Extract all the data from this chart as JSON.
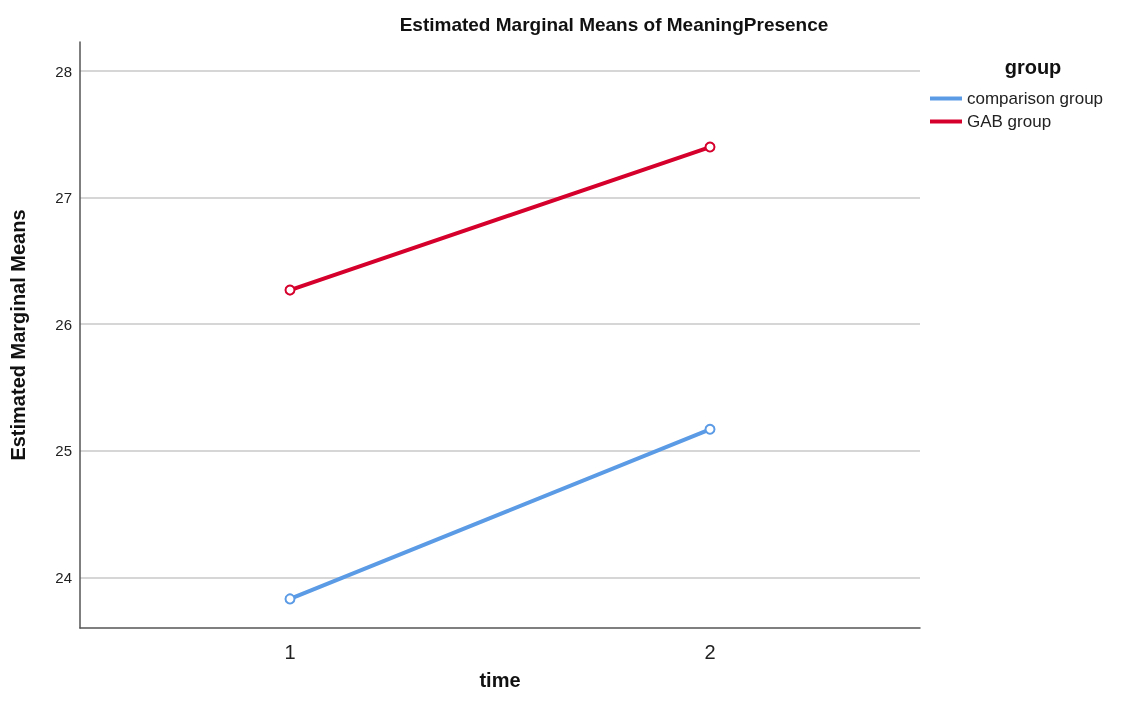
{
  "chart_data": {
    "type": "line",
    "title": "Estimated Marginal Means of MeaningPresence",
    "xlabel": "time",
    "ylabel": "Estimated Marginal Means",
    "legend_title": "group",
    "categories": [
      "1",
      "2"
    ],
    "series": [
      {
        "name": "comparison group",
        "color": "#5b9be6",
        "values": [
          23.83,
          25.17
        ]
      },
      {
        "name": "GAB group",
        "color": "#d6002c",
        "values": [
          26.27,
          27.4
        ]
      }
    ],
    "ylim": [
      23.6,
      28.23
    ],
    "yticks": [
      24,
      25,
      26,
      27,
      28
    ],
    "grid": "y",
    "legend": "top right",
    "marker": "circle",
    "line_style": "solid"
  }
}
